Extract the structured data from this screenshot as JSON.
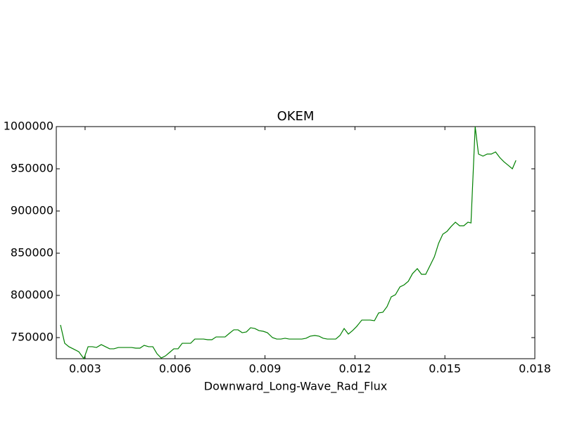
{
  "chart_data": {
    "type": "line",
    "title": "OKEM",
    "x_label": "Downward_Long-Wave_Rad_Flux",
    "x": [
      0.00218,
      0.00232,
      0.00246,
      0.0026,
      0.00279,
      0.00296,
      0.0031,
      0.00324,
      0.00338,
      0.00354,
      0.00368,
      0.00382,
      0.00396,
      0.00411,
      0.00427,
      0.00441,
      0.00455,
      0.00469,
      0.00483,
      0.00497,
      0.00512,
      0.00526,
      0.0054,
      0.00554,
      0.00568,
      0.00582,
      0.00596,
      0.0061,
      0.00624,
      0.00638,
      0.00652,
      0.00666,
      0.00681,
      0.00695,
      0.00709,
      0.00723,
      0.00737,
      0.00751,
      0.00767,
      0.00781,
      0.00796,
      0.0081,
      0.00824,
      0.00838,
      0.00852,
      0.00866,
      0.0088,
      0.00894,
      0.00908,
      0.00925,
      0.00939,
      0.00953,
      0.00967,
      0.00981,
      0.00995,
      0.01009,
      0.01023,
      0.01037,
      0.01051,
      0.01066,
      0.0108,
      0.01094,
      0.01108,
      0.01122,
      0.01136,
      0.0115,
      0.01164,
      0.01178,
      0.01192,
      0.01206,
      0.01223,
      0.01237,
      0.01251,
      0.01265,
      0.01279,
      0.01293,
      0.01307,
      0.01321,
      0.01335,
      0.0135,
      0.01364,
      0.01378,
      0.01392,
      0.01408,
      0.01422,
      0.01436,
      0.0145,
      0.01465,
      0.01479,
      0.01493,
      0.01507,
      0.01521,
      0.01535,
      0.01549,
      0.01563,
      0.01577,
      0.01587,
      0.01601,
      0.01612,
      0.01627,
      0.01641,
      0.01655,
      0.01669,
      0.01683,
      0.01697,
      0.01711,
      0.01725,
      0.01737
    ],
    "series": [
      {
        "name": "OKEM",
        "color": "#008000",
        "values": [
          765000,
          743300,
          739200,
          736700,
          733300,
          725000,
          739200,
          739200,
          738300,
          741700,
          739200,
          736700,
          736700,
          738300,
          738300,
          738300,
          738300,
          737500,
          737500,
          740800,
          739200,
          739200,
          730800,
          725800,
          728300,
          732500,
          736700,
          736700,
          743300,
          743300,
          743300,
          748300,
          748300,
          748300,
          747500,
          747500,
          750800,
          750800,
          750800,
          755000,
          759200,
          759200,
          755800,
          756700,
          761700,
          760800,
          758300,
          757500,
          755800,
          750000,
          748300,
          748300,
          749200,
          748300,
          748300,
          748300,
          748300,
          749200,
          751700,
          752500,
          751700,
          749200,
          748300,
          748300,
          748300,
          752500,
          760800,
          754200,
          758300,
          763300,
          770800,
          770800,
          770800,
          770000,
          779200,
          780000,
          786700,
          798300,
          800800,
          810000,
          812500,
          816700,
          825800,
          831700,
          825000,
          825000,
          835000,
          845800,
          861700,
          872500,
          875800,
          881700,
          886700,
          882500,
          882500,
          886700,
          885800,
          1000000,
          967500,
          965000,
          967500,
          967500,
          970000,
          963300,
          958300,
          954200,
          950000,
          960000
        ]
      }
    ],
    "xlim": [
      0.00204,
      0.018
    ],
    "xticks": [
      0.003,
      0.006,
      0.009,
      0.012,
      0.015,
      0.018
    ],
    "ylim": [
      725000,
      1000000
    ],
    "yticks": [
      750000,
      800000,
      850000,
      900000,
      950000,
      1000000
    ]
  }
}
